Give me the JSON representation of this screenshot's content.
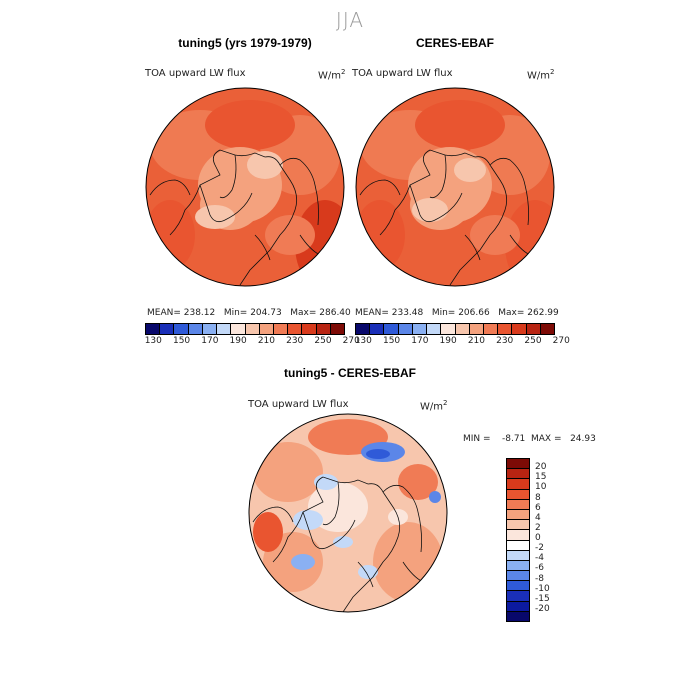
{
  "season": "JJA",
  "panels": {
    "left": {
      "title": "tuning5 (yrs 1979-1979)",
      "variable": "TOA upward LW flux",
      "units": "W/m",
      "units_sup": "2",
      "stats": "MEAN= 238.12   Min= 204.73   Max= 286.40",
      "mean": 238.12,
      "min": 204.73,
      "max": 286.4
    },
    "right": {
      "title": "CERES-EBAF",
      "variable": "TOA upward LW flux",
      "units": "W/m",
      "units_sup": "2",
      "stats": "MEAN= 233.48   Min= 206.66   Max= 262.99",
      "mean": 233.48,
      "min": 206.66,
      "max": 262.99
    },
    "diff": {
      "title": "tuning5 - CERES-EBAF",
      "variable": "TOA upward LW flux",
      "units": "W/m",
      "units_sup": "2",
      "stats": "MIN =    -8.71  MAX =   24.93",
      "min": -8.71,
      "max": 24.93
    }
  },
  "colorbar_abs": {
    "colors": [
      "#08086b",
      "#1a2fb8",
      "#2f5ad8",
      "#5b86e8",
      "#8ab0f2",
      "#c3d9f8",
      "#fbe6dc",
      "#f7c6ad",
      "#f4a27e",
      "#f07b55",
      "#e95530",
      "#d83a1c",
      "#b82412",
      "#7d0b06"
    ],
    "tick_labels": [
      "130",
      "150",
      "170",
      "190",
      "210",
      "230",
      "250",
      "270"
    ]
  },
  "colorbar_diff": {
    "colors": [
      "#7d0b06",
      "#b82412",
      "#d83a1c",
      "#e95530",
      "#f07b55",
      "#f4a27e",
      "#f7c6ad",
      "#fbe6dc",
      "#ffffff",
      "#c3d9f8",
      "#8ab0f2",
      "#5b86e8",
      "#2f5ad8",
      "#1a2fb8",
      "#0c1aa0",
      "#08086b"
    ],
    "tick_labels": [
      "20",
      "15",
      "10",
      "8",
      "6",
      "4",
      "2",
      "0",
      "-2",
      "-4",
      "-6",
      "-8",
      "-10",
      "-15",
      "-20"
    ]
  }
}
